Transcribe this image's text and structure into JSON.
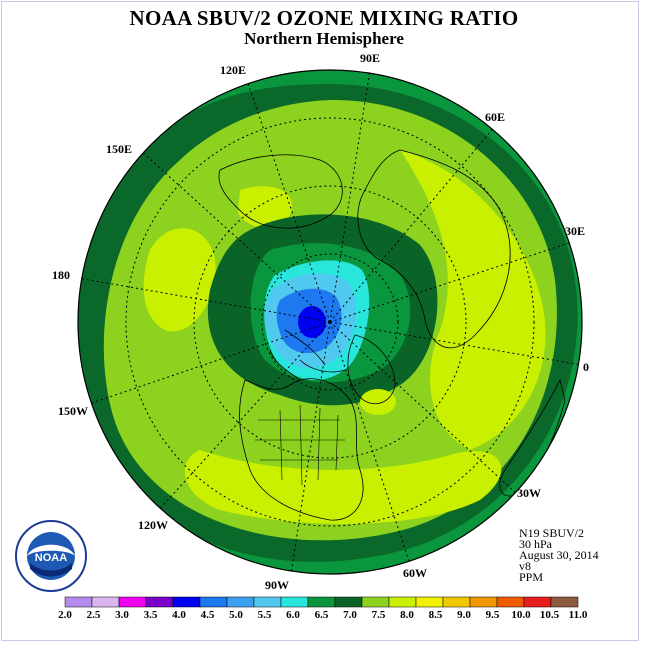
{
  "title": "NOAA SBUV/2 OZONE MIXING RATIO",
  "subtitle": "Northern Hemisphere",
  "longitude_labels": {
    "lon_90e": "90E",
    "lon_60e": "60E",
    "lon_30e": "30E",
    "lon_0": "0",
    "lon_30w": "30W",
    "lon_60w": "60W",
    "lon_90w": "90W",
    "lon_120w": "120W",
    "lon_150w": "150W",
    "lon_180": "180",
    "lon_150e": "150E",
    "lon_120e": "120E"
  },
  "info": {
    "satellite": "N19 SBUV/2",
    "level": "30 hPa",
    "date": "August 30, 2014",
    "version": "v8",
    "units": "PPM"
  },
  "logo": {
    "text": "NOAA",
    "icon": "noaa-logo"
  },
  "colorbar": {
    "labels": [
      "2.0",
      "2.5",
      "3.0",
      "3.5",
      "4.0",
      "4.5",
      "5.0",
      "5.5",
      "6.0",
      "6.5",
      "7.0",
      "7.5",
      "8.0",
      "8.5",
      "9.0",
      "9.5",
      "10.0",
      "10.5",
      "11.0"
    ],
    "colors": [
      "#b48cf0",
      "#dcb4f0",
      "#f000f0",
      "#7800c8",
      "#0000f0",
      "#1e78f0",
      "#3ca0f0",
      "#50c8f0",
      "#28e6dc",
      "#0a963c",
      "#0a6428",
      "#8cd21e",
      "#c8f000",
      "#f0f000",
      "#f0c800",
      "#f09600",
      "#f05a00",
      "#e61e1e",
      "#8c5a3c"
    ]
  },
  "colors": {
    "outer_ring": "#0a963c",
    "mid_ring": "#8cd21e",
    "bright_band": "#c8f000",
    "dark_green": "#0a6428",
    "cyan": "#28e6dc",
    "light_blue": "#50c8f0",
    "blue": "#1e78f0",
    "deep_blue": "#0000f0"
  }
}
